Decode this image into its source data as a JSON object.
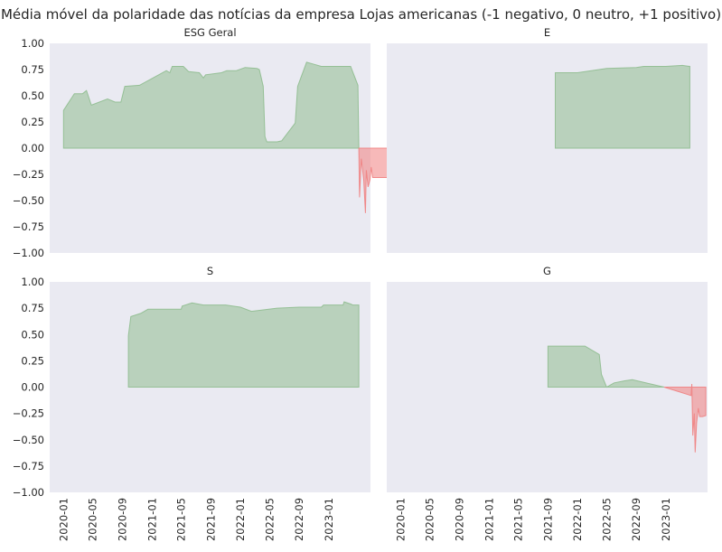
{
  "suptitle": "Média móvel da polaridade das notícias da empresa Lojas americanas (-1 negativo, 0 neutro, +1 positivo)",
  "colors": {
    "background": "#eaeaf2",
    "positive": "#8fbc8f",
    "negative": "#f08080"
  },
  "chart_data": [
    {
      "type": "area",
      "title": "ESG Geral",
      "ylim": [
        -1,
        1
      ],
      "yticks": [
        "1.00",
        "0.75",
        "0.50",
        "0.25",
        "0.00",
        "−0.25",
        "−0.50",
        "−0.75",
        "−1.00"
      ],
      "series": [
        {
          "values": [
            [
              "2020-01-01",
              0.0
            ],
            [
              "2020-01-01",
              0.36
            ],
            [
              "2020-02-15",
              0.52
            ],
            [
              "2020-03-20",
              0.52
            ],
            [
              "2020-04-05",
              0.55
            ],
            [
              "2020-04-25",
              0.41
            ],
            [
              "2020-07-01",
              0.47
            ],
            [
              "2020-08-01",
              0.44
            ],
            [
              "2020-08-25",
              0.44
            ],
            [
              "2020-09-10",
              0.59
            ],
            [
              "2020-11-10",
              0.6
            ],
            [
              "2021-03-01",
              0.74
            ],
            [
              "2021-03-15",
              0.72
            ],
            [
              "2021-03-25",
              0.78
            ],
            [
              "2021-05-10",
              0.78
            ],
            [
              "2021-06-01",
              0.73
            ],
            [
              "2021-07-15",
              0.72
            ],
            [
              "2021-08-01",
              0.67
            ],
            [
              "2021-08-10",
              0.7
            ],
            [
              "2021-10-15",
              0.72
            ],
            [
              "2021-11-05",
              0.74
            ],
            [
              "2021-12-15",
              0.74
            ],
            [
              "2022-01-20",
              0.77
            ],
            [
              "2022-03-10",
              0.76
            ],
            [
              "2022-03-20",
              0.75
            ],
            [
              "2022-04-05",
              0.59
            ],
            [
              "2022-04-12",
              0.11
            ],
            [
              "2022-04-20",
              0.06
            ],
            [
              "2022-06-01",
              0.06
            ],
            [
              "2022-06-20",
              0.07
            ],
            [
              "2022-08-15",
              0.24
            ],
            [
              "2022-08-25",
              0.59
            ],
            [
              "2022-10-01",
              0.82
            ],
            [
              "2022-11-01",
              0.8
            ],
            [
              "2022-12-01",
              0.78
            ],
            [
              "2023-04-01",
              0.78
            ],
            [
              "2023-05-01",
              0.6
            ],
            [
              "2023-05-05",
              0.0
            ]
          ]
        },
        {
          "values": [
            [
              "2023-05-05",
              0.0
            ],
            [
              "2023-05-08",
              -0.47
            ],
            [
              "2023-05-15",
              -0.1
            ],
            [
              "2023-05-25",
              -0.3
            ],
            [
              "2023-06-01",
              -0.62
            ],
            [
              "2023-06-05",
              -0.21
            ],
            [
              "2023-06-12",
              -0.37
            ],
            [
              "2023-06-20",
              -0.3
            ],
            [
              "2023-06-25",
              -0.18
            ],
            [
              "2023-07-01",
              -0.28
            ],
            [
              "2023-07-15",
              -0.28
            ],
            [
              "2023-10-31",
              -0.28
            ],
            [
              "2023-10-31",
              0.0
            ]
          ]
        }
      ]
    },
    {
      "type": "area",
      "title": "E",
      "ylim": [
        -1,
        1
      ],
      "series": [
        {
          "values": [
            [
              "2021-10-01",
              0.0
            ],
            [
              "2021-10-01",
              0.72
            ],
            [
              "2022-01-01",
              0.72
            ],
            [
              "2022-05-01",
              0.76
            ],
            [
              "2022-09-01",
              0.77
            ],
            [
              "2022-10-01",
              0.78
            ],
            [
              "2023-01-01",
              0.78
            ],
            [
              "2023-03-10",
              0.79
            ],
            [
              "2023-04-10",
              0.78
            ],
            [
              "2023-04-10",
              0.0
            ]
          ]
        }
      ]
    },
    {
      "type": "area",
      "title": "S",
      "ylim": [
        -1,
        1
      ],
      "yticks": [
        "1.00",
        "0.75",
        "0.50",
        "0.25",
        "0.00",
        "−0.25",
        "−0.50",
        "−0.75",
        "−1.00"
      ],
      "series": [
        {
          "values": [
            [
              "2020-09-25",
              0.0
            ],
            [
              "2020-09-25",
              0.49
            ],
            [
              "2020-10-05",
              0.67
            ],
            [
              "2020-11-15",
              0.7
            ],
            [
              "2020-12-15",
              0.74
            ],
            [
              "2021-05-01",
              0.74
            ],
            [
              "2021-05-05",
              0.77
            ],
            [
              "2021-06-15",
              0.8
            ],
            [
              "2021-08-01",
              0.78
            ],
            [
              "2021-11-01",
              0.78
            ],
            [
              "2022-01-01",
              0.76
            ],
            [
              "2022-02-15",
              0.72
            ],
            [
              "2022-06-01",
              0.75
            ],
            [
              "2022-09-01",
              0.76
            ],
            [
              "2022-12-01",
              0.76
            ],
            [
              "2022-12-10",
              0.78
            ],
            [
              "2023-03-01",
              0.78
            ],
            [
              "2023-03-05",
              0.81
            ],
            [
              "2023-04-01",
              0.79
            ],
            [
              "2023-04-10",
              0.78
            ],
            [
              "2023-05-05",
              0.78
            ],
            [
              "2023-05-05",
              0.0
            ]
          ]
        }
      ]
    },
    {
      "type": "area",
      "title": "G",
      "ylim": [
        -1,
        1
      ],
      "xticks": [
        "2020-01",
        "2020-05",
        "2020-09",
        "2021-01",
        "2021-05",
        "2021-09",
        "2022-01",
        "2022-05",
        "2022-09",
        "2023-01"
      ],
      "series": [
        {
          "values": [
            [
              "2021-09-01",
              0.0
            ],
            [
              "2021-09-01",
              0.39
            ],
            [
              "2022-02-01",
              0.39
            ],
            [
              "2022-04-01",
              0.31
            ],
            [
              "2022-04-10",
              0.12
            ],
            [
              "2022-05-01",
              0.0
            ],
            [
              "2022-06-01",
              0.04
            ],
            [
              "2022-07-15",
              0.06
            ],
            [
              "2022-08-15",
              0.07
            ],
            [
              "2022-12-25",
              0.0
            ]
          ]
        },
        {
          "values": [
            [
              "2022-12-25",
              0.0
            ],
            [
              "2023-04-15",
              -0.08
            ],
            [
              "2023-04-18",
              0.03
            ],
            [
              "2023-04-22",
              -0.46
            ],
            [
              "2023-04-28",
              -0.25
            ],
            [
              "2023-05-02",
              -0.62
            ],
            [
              "2023-05-08",
              -0.34
            ],
            [
              "2023-05-15",
              -0.2
            ],
            [
              "2023-05-20",
              -0.28
            ],
            [
              "2023-06-01",
              -0.28
            ],
            [
              "2023-06-15",
              -0.27
            ],
            [
              "2023-06-15",
              0.0
            ]
          ]
        }
      ]
    }
  ]
}
